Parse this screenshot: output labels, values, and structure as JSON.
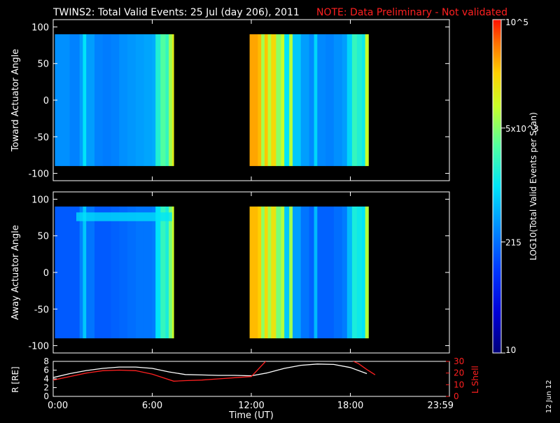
{
  "header": {
    "title": "TWINS2: Total Valid Events: 25 Jul (day 206), 2011",
    "note": "NOTE: Data Preliminary - Not validated"
  },
  "colors": {
    "background": "#000000",
    "axis": "#ffffff",
    "note": "#ff2020",
    "radius_line": "#ffffff",
    "lshell_line": "#ff2020"
  },
  "footer": {
    "datestamp": "12 Jun 12"
  },
  "chart_data": [
    {
      "type": "heatmap",
      "panel": "toward",
      "ylabel": "Toward Actuator Angle",
      "xlim": [
        0,
        24
      ],
      "ylim": [
        -110,
        110
      ],
      "y_ticks": [
        100,
        50,
        0,
        -50,
        -100
      ],
      "angle_range": [
        -90,
        90
      ],
      "data_spans_hours": [
        [
          0.1,
          7.3
        ],
        [
          11.9,
          19.1
        ]
      ],
      "column_intensity": [
        {
          "t": 0.1,
          "v": 0.38
        },
        {
          "t": 0.5,
          "v": 0.38
        },
        {
          "t": 1.0,
          "v": 0.36
        },
        {
          "t": 1.6,
          "v": 0.4
        },
        {
          "t": 1.8,
          "v": 0.5
        },
        {
          "t": 2.0,
          "v": 0.4
        },
        {
          "t": 2.5,
          "v": 0.36
        },
        {
          "t": 3.0,
          "v": 0.35
        },
        {
          "t": 3.5,
          "v": 0.36
        },
        {
          "t": 4.0,
          "v": 0.38
        },
        {
          "t": 4.5,
          "v": 0.39
        },
        {
          "t": 5.0,
          "v": 0.4
        },
        {
          "t": 5.5,
          "v": 0.41
        },
        {
          "t": 6.0,
          "v": 0.42
        },
        {
          "t": 6.2,
          "v": 0.55
        },
        {
          "t": 6.5,
          "v": 0.62
        },
        {
          "t": 6.8,
          "v": 0.58
        },
        {
          "t": 7.0,
          "v": 0.7
        },
        {
          "t": 7.2,
          "v": 0.78
        },
        {
          "t": 11.9,
          "v": 0.88
        },
        {
          "t": 12.4,
          "v": 0.86
        },
        {
          "t": 12.6,
          "v": 0.7
        },
        {
          "t": 12.8,
          "v": 0.85
        },
        {
          "t": 13.0,
          "v": 0.72
        },
        {
          "t": 13.2,
          "v": 0.82
        },
        {
          "t": 13.5,
          "v": 0.68
        },
        {
          "t": 13.8,
          "v": 0.74
        },
        {
          "t": 14.0,
          "v": 0.5
        },
        {
          "t": 14.3,
          "v": 0.72
        },
        {
          "t": 14.5,
          "v": 0.46
        },
        {
          "t": 15.0,
          "v": 0.4
        },
        {
          "t": 15.5,
          "v": 0.37
        },
        {
          "t": 15.8,
          "v": 0.48
        },
        {
          "t": 16.0,
          "v": 0.37
        },
        {
          "t": 16.5,
          "v": 0.36
        },
        {
          "t": 17.0,
          "v": 0.38
        },
        {
          "t": 17.5,
          "v": 0.4
        },
        {
          "t": 17.8,
          "v": 0.48
        },
        {
          "t": 18.1,
          "v": 0.58
        },
        {
          "t": 18.4,
          "v": 0.55
        },
        {
          "t": 18.7,
          "v": 0.52
        },
        {
          "t": 18.9,
          "v": 0.74
        }
      ]
    },
    {
      "type": "heatmap",
      "panel": "away",
      "ylabel": "Away Actuator Angle",
      "xlim": [
        0,
        24
      ],
      "ylim": [
        -110,
        110
      ],
      "y_ticks": [
        100,
        50,
        0,
        -50,
        -100
      ],
      "angle_range": [
        -90,
        90
      ],
      "data_spans_hours": [
        [
          0.1,
          7.3
        ],
        [
          11.9,
          19.1
        ]
      ],
      "column_intensity": [
        {
          "t": 0.1,
          "v": 0.3
        },
        {
          "t": 0.5,
          "v": 0.3
        },
        {
          "t": 1.0,
          "v": 0.3
        },
        {
          "t": 1.6,
          "v": 0.36
        },
        {
          "t": 1.8,
          "v": 0.46
        },
        {
          "t": 2.0,
          "v": 0.34
        },
        {
          "t": 2.5,
          "v": 0.3
        },
        {
          "t": 3.0,
          "v": 0.3
        },
        {
          "t": 3.5,
          "v": 0.31
        },
        {
          "t": 4.0,
          "v": 0.32
        },
        {
          "t": 4.5,
          "v": 0.33
        },
        {
          "t": 5.0,
          "v": 0.34
        },
        {
          "t": 5.5,
          "v": 0.34
        },
        {
          "t": 6.0,
          "v": 0.35
        },
        {
          "t": 6.2,
          "v": 0.5
        },
        {
          "t": 6.5,
          "v": 0.58
        },
        {
          "t": 6.8,
          "v": 0.54
        },
        {
          "t": 7.0,
          "v": 0.66
        },
        {
          "t": 7.2,
          "v": 0.74
        },
        {
          "t": 11.9,
          "v": 0.86
        },
        {
          "t": 12.4,
          "v": 0.84
        },
        {
          "t": 12.6,
          "v": 0.68
        },
        {
          "t": 12.8,
          "v": 0.82
        },
        {
          "t": 13.0,
          "v": 0.7
        },
        {
          "t": 13.2,
          "v": 0.8
        },
        {
          "t": 13.5,
          "v": 0.66
        },
        {
          "t": 13.8,
          "v": 0.72
        },
        {
          "t": 14.0,
          "v": 0.46
        },
        {
          "t": 14.3,
          "v": 0.7
        },
        {
          "t": 14.5,
          "v": 0.4
        },
        {
          "t": 15.0,
          "v": 0.34
        },
        {
          "t": 15.5,
          "v": 0.31
        },
        {
          "t": 15.8,
          "v": 0.44
        },
        {
          "t": 16.0,
          "v": 0.31
        },
        {
          "t": 16.5,
          "v": 0.31
        },
        {
          "t": 17.0,
          "v": 0.33
        },
        {
          "t": 17.5,
          "v": 0.35
        },
        {
          "t": 17.8,
          "v": 0.44
        },
        {
          "t": 18.1,
          "v": 0.54
        },
        {
          "t": 18.4,
          "v": 0.52
        },
        {
          "t": 18.7,
          "v": 0.5
        },
        {
          "t": 18.9,
          "v": 0.72
        }
      ]
    },
    {
      "type": "line",
      "panel": "orbit",
      "xlabel": "Time (UT)",
      "xlim": [
        0,
        24
      ],
      "x_ticks": [
        "0:00",
        "6:00",
        "12:00",
        "18:00",
        "23:59"
      ],
      "left_axis": {
        "ylabel": "R [RE]",
        "ylim": [
          0,
          8
        ],
        "ticks": [
          8,
          6,
          4,
          2,
          0
        ]
      },
      "right_axis": {
        "ylabel": "L Shell",
        "ylim": [
          0,
          30
        ],
        "ticks": [
          30,
          20,
          10,
          0
        ]
      },
      "series": [
        {
          "axis": "left",
          "color": "#ffffff",
          "x": [
            0,
            1,
            2,
            3,
            4,
            5,
            6,
            7,
            8,
            9,
            10,
            11,
            12,
            13,
            14,
            15,
            16,
            17,
            18,
            19
          ],
          "y": [
            4.3,
            5.2,
            5.9,
            6.4,
            6.7,
            6.7,
            6.4,
            5.6,
            5.0,
            4.9,
            4.8,
            4.8,
            4.7,
            5.4,
            6.4,
            7.1,
            7.4,
            7.3,
            6.6,
            5.2
          ]
        },
        {
          "axis": "right",
          "color": "#ff2020",
          "x": [
            0,
            1,
            2,
            3,
            4,
            5,
            6,
            7.3,
            8,
            9,
            10,
            11,
            12,
            13,
            17.9,
            18.5,
            19,
            19.5
          ],
          "y": [
            14,
            17,
            20,
            22,
            22.5,
            22,
            19,
            13,
            13.5,
            14,
            15,
            16,
            17,
            32,
            32,
            28,
            23,
            18.5
          ]
        }
      ]
    },
    {
      "type": "colorbar",
      "label": "LOG10(Total Valid Events per Scan)",
      "scale": "log",
      "range": [
        10,
        100000
      ],
      "tick_labels": [
        "10",
        "215",
        "5x10^3",
        "10^5"
      ],
      "tick_values": [
        10,
        215,
        5000,
        100000
      ]
    }
  ]
}
